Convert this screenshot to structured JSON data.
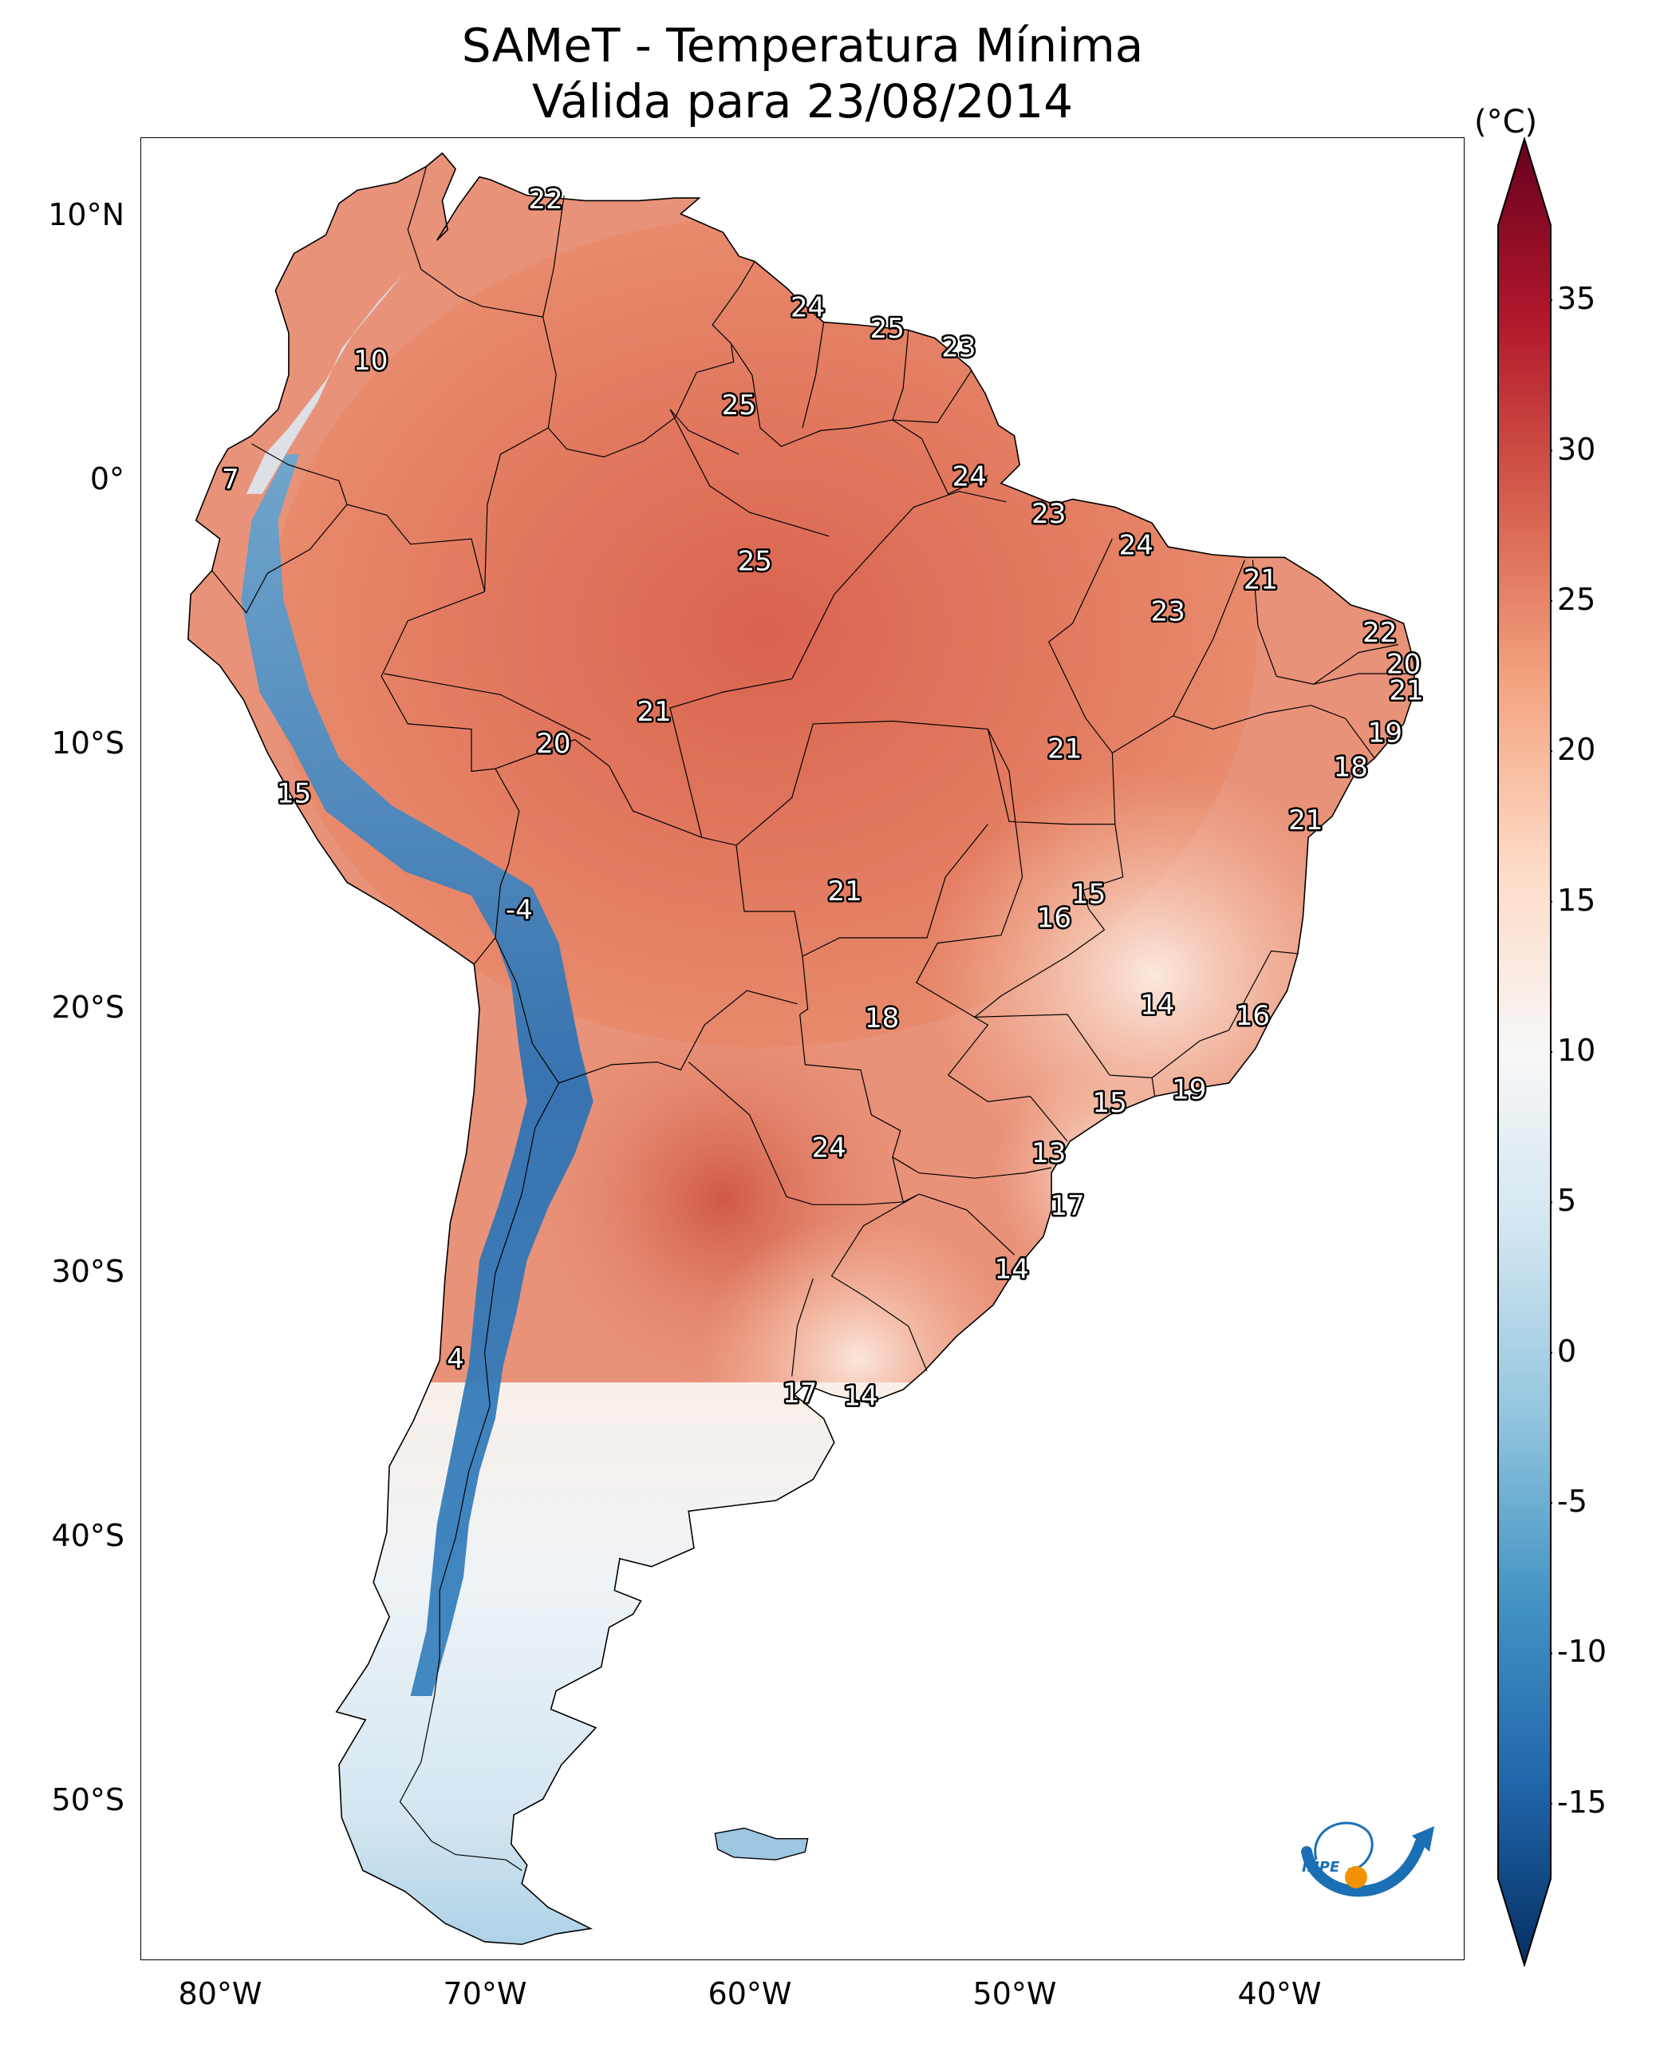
{
  "title": {
    "line1": "SAMeT - Temperatura Mínima",
    "line2": "Válida para 23/08/2014"
  },
  "map": {
    "extent_lon": [
      -83,
      -33
    ],
    "extent_lat": [
      -56,
      13
    ],
    "lat_ticks": [
      {
        "value": 10,
        "label": "10°N"
      },
      {
        "value": 0,
        "label": "0°"
      },
      {
        "value": -10,
        "label": "10°S"
      },
      {
        "value": -20,
        "label": "20°S"
      },
      {
        "value": -30,
        "label": "30°S"
      },
      {
        "value": -40,
        "label": "40°S"
      },
      {
        "value": -50,
        "label": "50°S"
      }
    ],
    "lon_ticks": [
      {
        "value": -80,
        "label": "80°W"
      },
      {
        "value": -70,
        "label": "70°W"
      },
      {
        "value": -60,
        "label": "60°W"
      },
      {
        "value": -50,
        "label": "50°W"
      },
      {
        "value": -40,
        "label": "40°W"
      }
    ],
    "temperature_labels": [
      {
        "lon": -67.7,
        "lat": 10.6,
        "text": "22"
      },
      {
        "lon": -57.8,
        "lat": 6.5,
        "text": "24"
      },
      {
        "lon": -54.8,
        "lat": 5.7,
        "text": "25"
      },
      {
        "lon": -52.1,
        "lat": 5.0,
        "text": "23"
      },
      {
        "lon": -74.3,
        "lat": 4.5,
        "text": "10"
      },
      {
        "lon": -60.4,
        "lat": 2.8,
        "text": "25"
      },
      {
        "lon": -79.6,
        "lat": 0.0,
        "text": "7"
      },
      {
        "lon": -51.7,
        "lat": 0.1,
        "text": "24"
      },
      {
        "lon": -48.7,
        "lat": -1.3,
        "text": "23"
      },
      {
        "lon": -45.4,
        "lat": -2.5,
        "text": "24"
      },
      {
        "lon": -40.7,
        "lat": -3.8,
        "text": "21"
      },
      {
        "lon": -59.8,
        "lat": -3.1,
        "text": "25"
      },
      {
        "lon": -44.2,
        "lat": -5.0,
        "text": "23"
      },
      {
        "lon": -36.2,
        "lat": -5.8,
        "text": "22"
      },
      {
        "lon": -35.3,
        "lat": -7.0,
        "text": "20"
      },
      {
        "lon": -35.2,
        "lat": -8.0,
        "text": "21"
      },
      {
        "lon": -63.6,
        "lat": -8.8,
        "text": "21"
      },
      {
        "lon": -67.4,
        "lat": -10.0,
        "text": "20"
      },
      {
        "lon": -36.0,
        "lat": -9.6,
        "text": "19"
      },
      {
        "lon": -48.1,
        "lat": -10.2,
        "text": "21"
      },
      {
        "lon": -37.3,
        "lat": -10.9,
        "text": "18"
      },
      {
        "lon": -77.2,
        "lat": -11.9,
        "text": "15"
      },
      {
        "lon": -39.0,
        "lat": -12.9,
        "text": "21"
      },
      {
        "lon": -56.4,
        "lat": -15.6,
        "text": "21"
      },
      {
        "lon": -47.2,
        "lat": -15.7,
        "text": "15"
      },
      {
        "lon": -48.5,
        "lat": -16.6,
        "text": "16"
      },
      {
        "lon": -68.7,
        "lat": -16.3,
        "text": "-4"
      },
      {
        "lon": -44.6,
        "lat": -19.9,
        "text": "14"
      },
      {
        "lon": -41.0,
        "lat": -20.3,
        "text": "16"
      },
      {
        "lon": -55.0,
        "lat": -20.4,
        "text": "18"
      },
      {
        "lon": -43.4,
        "lat": -23.1,
        "text": "19"
      },
      {
        "lon": -46.4,
        "lat": -23.6,
        "text": "15"
      },
      {
        "lon": -57.0,
        "lat": -25.3,
        "text": "24"
      },
      {
        "lon": -48.7,
        "lat": -25.5,
        "text": "13"
      },
      {
        "lon": -48.0,
        "lat": -27.5,
        "text": "17"
      },
      {
        "lon": -50.1,
        "lat": -29.9,
        "text": "14"
      },
      {
        "lon": -71.1,
        "lat": -33.3,
        "text": "4"
      },
      {
        "lon": -58.1,
        "lat": -34.6,
        "text": "17"
      },
      {
        "lon": -55.8,
        "lat": -34.7,
        "text": "14"
      }
    ]
  },
  "colorbar": {
    "unit": "(°C)",
    "min": -17.5,
    "max": 37.5,
    "ticks": [
      {
        "value": 35,
        "label": "35"
      },
      {
        "value": 30,
        "label": "30"
      },
      {
        "value": 25,
        "label": "25"
      },
      {
        "value": 20,
        "label": "20"
      },
      {
        "value": 15,
        "label": "15"
      },
      {
        "value": 10,
        "label": "10"
      },
      {
        "value": 5,
        "label": "5"
      },
      {
        "value": 0,
        "label": "0"
      },
      {
        "value": -5,
        "label": "-5"
      },
      {
        "value": -10,
        "label": "-10"
      },
      {
        "value": -15,
        "label": "-15"
      }
    ],
    "colors": [
      "#053061",
      "#2166ac",
      "#4393c3",
      "#92c5de",
      "#d1e5f0",
      "#f7f7f7",
      "#fddbc7",
      "#f4a582",
      "#d6604d",
      "#b2182b",
      "#67001f"
    ]
  },
  "logo": {
    "name": "INPE",
    "colors": [
      "#1a6fb5",
      "#f39200"
    ]
  }
}
